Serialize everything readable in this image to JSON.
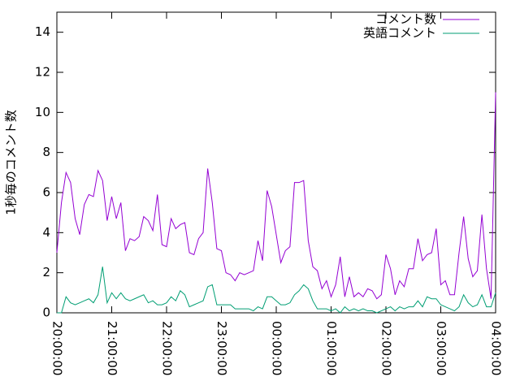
{
  "chart_data": {
    "type": "line",
    "y_label": "1秒毎のコメント数",
    "x": [
      "20:00:00",
      "20:05:00",
      "20:10:00",
      "20:15:00",
      "20:20:00",
      "20:25:00",
      "20:30:00",
      "20:35:00",
      "20:40:00",
      "20:45:00",
      "20:50:00",
      "20:55:00",
      "21:00:00",
      "21:05:00",
      "21:10:00",
      "21:15:00",
      "21:20:00",
      "21:25:00",
      "21:30:00",
      "21:35:00",
      "21:40:00",
      "21:45:00",
      "21:50:00",
      "21:55:00",
      "22:00:00",
      "22:05:00",
      "22:10:00",
      "22:15:00",
      "22:20:00",
      "22:25:00",
      "22:30:00",
      "22:35:00",
      "22:40:00",
      "22:45:00",
      "22:50:00",
      "22:55:00",
      "23:00:00",
      "23:05:00",
      "23:10:00",
      "23:15:00",
      "23:20:00",
      "23:25:00",
      "23:30:00",
      "23:35:00",
      "23:40:00",
      "23:45:00",
      "23:50:00",
      "23:55:00",
      "00:00:00",
      "00:05:00",
      "00:10:00",
      "00:15:00",
      "00:20:00",
      "00:25:00",
      "00:30:00",
      "00:35:00",
      "00:40:00",
      "00:45:00",
      "00:50:00",
      "00:55:00",
      "01:00:00",
      "01:05:00",
      "01:10:00",
      "01:15:00",
      "01:20:00",
      "01:25:00",
      "01:30:00",
      "01:35:00",
      "01:40:00",
      "01:45:00",
      "01:50:00",
      "01:55:00",
      "02:00:00",
      "02:05:00",
      "02:10:00",
      "02:15:00",
      "02:20:00",
      "02:25:00",
      "02:30:00",
      "02:35:00",
      "02:40:00",
      "02:45:00",
      "02:50:00",
      "02:55:00",
      "03:00:00",
      "03:05:00",
      "03:10:00",
      "03:15:00",
      "03:20:00",
      "03:25:00",
      "03:30:00",
      "03:35:00",
      "03:40:00",
      "03:45:00",
      "03:50:00",
      "03:55:00",
      "04:00:00"
    ],
    "series": [
      {
        "name": "コメント数",
        "color": "#9400d3",
        "values": [
          3.0,
          5.5,
          7.0,
          6.5,
          4.7,
          3.9,
          5.4,
          5.9,
          5.8,
          7.1,
          6.6,
          4.6,
          5.8,
          4.7,
          5.5,
          3.1,
          3.7,
          3.6,
          3.8,
          4.8,
          4.6,
          4.1,
          5.9,
          3.4,
          3.3,
          4.7,
          4.2,
          4.4,
          4.5,
          3.0,
          2.9,
          3.7,
          4.0,
          7.2,
          5.5,
          3.2,
          3.1,
          2.0,
          1.9,
          1.6,
          2.0,
          1.9,
          2.0,
          2.1,
          3.6,
          2.6,
          6.1,
          5.3,
          3.9,
          2.5,
          3.1,
          3.3,
          6.5,
          6.5,
          6.6,
          3.6,
          2.3,
          2.1,
          1.2,
          1.6,
          0.8,
          1.4,
          2.8,
          0.8,
          1.8,
          0.8,
          1.0,
          0.8,
          1.2,
          1.1,
          0.7,
          0.9,
          2.9,
          2.2,
          0.9,
          1.6,
          1.3,
          2.2,
          2.2,
          3.7,
          2.6,
          2.9,
          3.0,
          4.2,
          1.4,
          1.6,
          0.9,
          0.9,
          3.0,
          4.8,
          2.7,
          1.8,
          2.1,
          4.9,
          2.2,
          0.7,
          11.0
        ]
      },
      {
        "name": "英語コメント",
        "color": "#009e73",
        "values": [
          0,
          0,
          0.8,
          0.5,
          0.4,
          0.5,
          0.6,
          0.7,
          0.5,
          0.9,
          2.3,
          0.5,
          1.0,
          0.7,
          1.0,
          0.7,
          0.6,
          0.7,
          0.8,
          0.9,
          0.5,
          0.6,
          0.4,
          0.4,
          0.5,
          0.8,
          0.6,
          1.1,
          0.9,
          0.3,
          0.4,
          0.5,
          0.6,
          1.3,
          1.4,
          0.4,
          0.4,
          0.4,
          0.4,
          0.2,
          0.2,
          0.2,
          0.2,
          0.1,
          0.3,
          0.2,
          0.8,
          0.8,
          0.6,
          0.4,
          0.4,
          0.5,
          0.9,
          1.1,
          1.4,
          1.2,
          0.6,
          0.2,
          0.2,
          0.2,
          0.1,
          0.2,
          0.0,
          0.3,
          0.1,
          0.2,
          0.1,
          0.2,
          0.1,
          0.1,
          0.0,
          0.1,
          0.2,
          0.3,
          0.1,
          0.3,
          0.2,
          0.3,
          0.3,
          0.6,
          0.3,
          0.8,
          0.7,
          0.7,
          0.4,
          0.3,
          0.2,
          0.1,
          0.3,
          0.9,
          0.5,
          0.3,
          0.4,
          0.9,
          0.3,
          0.3,
          1.0
        ]
      }
    ],
    "xlim": [
      "20:00:00",
      "04:00:00"
    ],
    "xticks": [
      "20:00:00",
      "21:00:00",
      "22:00:00",
      "23:00:00",
      "00:00:00",
      "01:00:00",
      "02:00:00",
      "03:00:00",
      "04:00:00"
    ],
    "ylim": [
      0,
      15
    ],
    "yticks": [
      0,
      2,
      4,
      6,
      8,
      10,
      12,
      14
    ],
    "legend": "top-right",
    "grid": false
  }
}
